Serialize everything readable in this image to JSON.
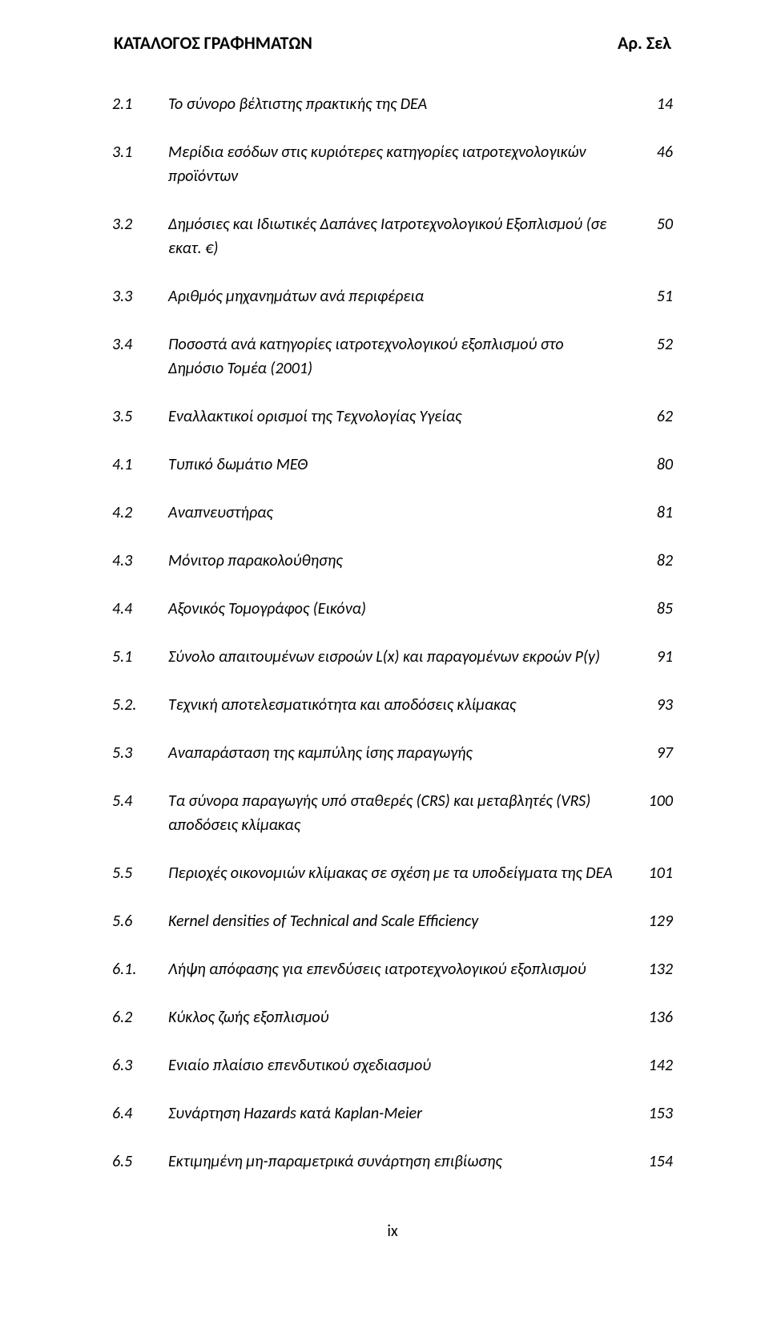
{
  "header": {
    "title": "ΚΑΤΑΛΟΓΟΣ ΓΡΑΦΗΜΑΤΩΝ",
    "page_col": "Αρ. Σελ"
  },
  "entries": [
    {
      "num": "2.1",
      "desc": "Το σύνορο βέλτιστης πρακτικής της DEA",
      "page": "14"
    },
    {
      "num": "3.1",
      "desc": "Μερίδια εσόδων στις κυριότερες κατηγορίες ιατροτεχνολογικών προϊόντων",
      "page": "46"
    },
    {
      "num": "3.2",
      "desc": "Δημόσιες και Ιδιωτικές Δαπάνες Ιατροτεχνολογικού Εξοπλισμού (σε εκατ. €)",
      "page": "50"
    },
    {
      "num": "3.3",
      "desc": "Αριθμός μηχανημάτων ανά περιφέρεια",
      "page": "51"
    },
    {
      "num": "3.4",
      "desc": "Ποσοστά ανά κατηγορίες ιατροτεχνολογικού εξοπλισμού στο Δημόσιο Τομέα (2001)",
      "page": "52"
    },
    {
      "num": "3.5",
      "desc": "Εναλλακτικοί ορισμοί της Τεχνολογίας Υγείας",
      "page": "62"
    },
    {
      "num": "4.1",
      "desc": "Τυπικό δωμάτιο ΜΕΘ",
      "page": "80"
    },
    {
      "num": "4.2",
      "desc": "Αναπνευστήρας",
      "page": "81"
    },
    {
      "num": "4.3",
      "desc": "Μόνιτορ παρακολούθησης",
      "page": "82"
    },
    {
      "num": "4.4",
      "desc": "Αξονικός Τομογράφος (Εικόνα)",
      "page": "85"
    },
    {
      "num": "5.1",
      "desc": "Σύνολο απαιτουμένων εισροών L(x) και παραγομένων εκροών P(y)",
      "page": "91"
    },
    {
      "num": "5.2.",
      "desc": "Τεχνική αποτελεσματικότητα και αποδόσεις κλίμακας",
      "page": "93"
    },
    {
      "num": "5.3",
      "desc": "Αναπαράσταση της καμπύλης ίσης παραγωγής",
      "page": "97"
    },
    {
      "num": "5.4",
      "desc": "Τα σύνορα παραγωγής υπό σταθερές (CRS) και μεταβλητές (VRS) αποδόσεις κλίμακας",
      "page": "100"
    },
    {
      "num": "5.5",
      "desc": "Περιοχές οικονομιών κλίμακας σε σχέση με τα υποδείγματα της DEA",
      "page": "101"
    },
    {
      "num": "5.6",
      "desc": "Kernel densities of Technical and Scale Efficiency",
      "page": "129"
    },
    {
      "num": "6.1.",
      "desc": "Λήψη απόφασης για επενδύσεις ιατροτεχνολογικού εξοπλισμού",
      "page": "132"
    },
    {
      "num": "6.2",
      "desc": "Κύκλος ζωής εξοπλισμού",
      "page": "136"
    },
    {
      "num": "6.3",
      "desc": "Ενιαίο πλαίσιο επενδυτικού σχεδιασμού",
      "page": "142"
    },
    {
      "num": "6.4",
      "desc": "Συνάρτηση Hazards κατά Kaplan-Meier",
      "page": "153"
    },
    {
      "num": "6.5",
      "desc": "Εκτιμημένη μη-παραμετρικά συνάρτηση επιβίωσης",
      "page": "154"
    }
  ],
  "footer": {
    "pagenum": "ix"
  }
}
